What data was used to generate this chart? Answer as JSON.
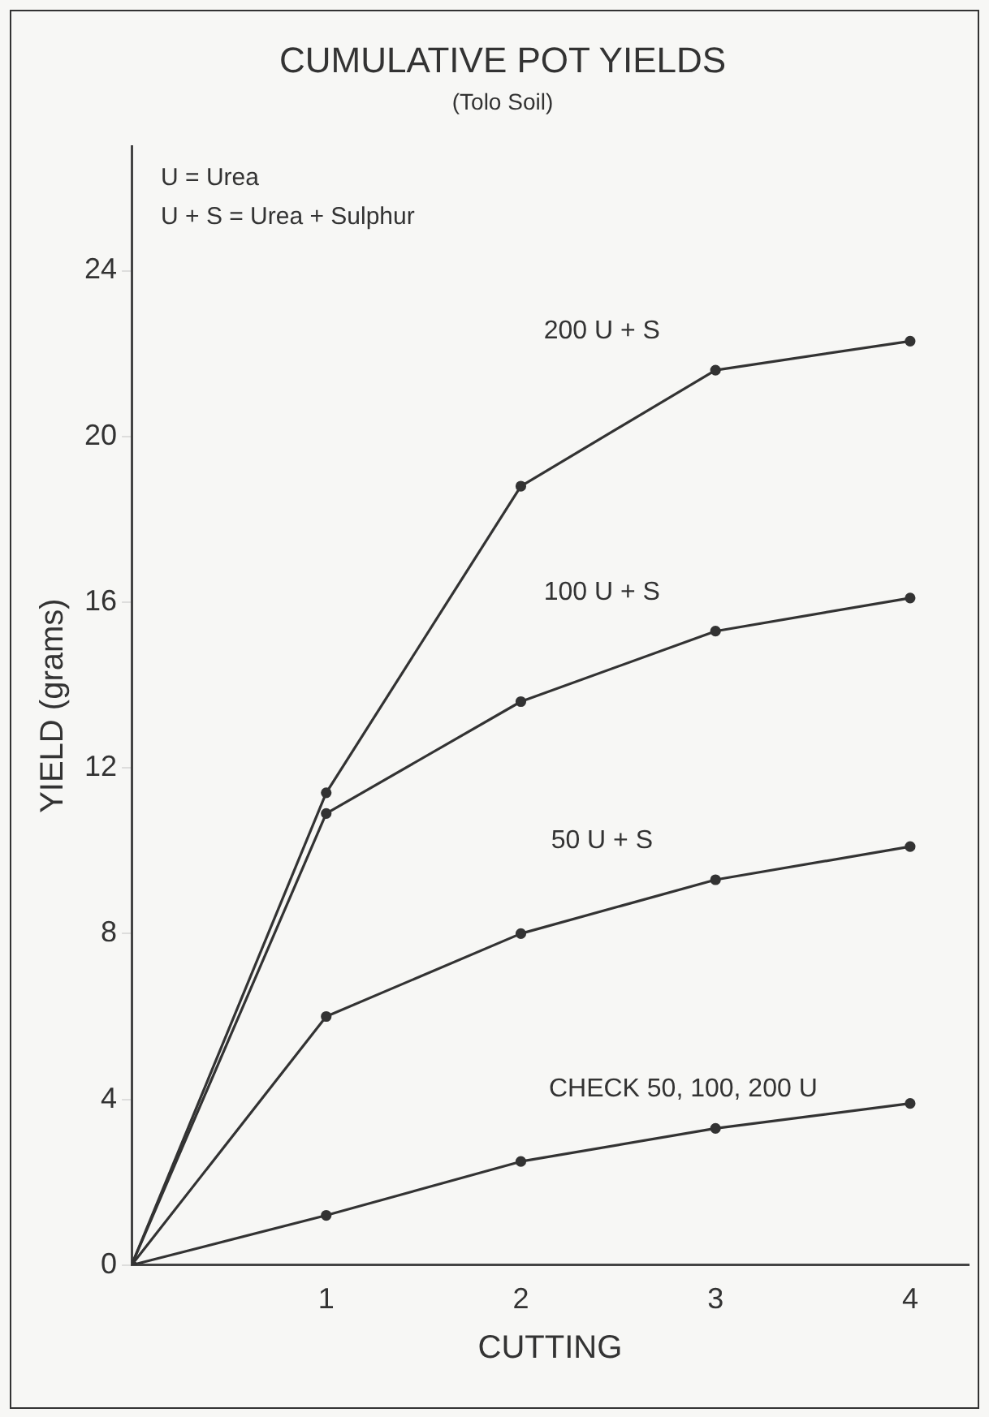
{
  "chart_data": {
    "type": "line",
    "title": "CUMULATIVE POT YIELDS",
    "subtitle": "(Tolo Soil)",
    "xlabel": "CUTTING",
    "ylabel": "YIELD (grams)",
    "annotations": [
      "U = Urea",
      "U + S = Urea + Sulphur"
    ],
    "x": [
      0,
      1,
      2,
      3,
      4
    ],
    "series": [
      {
        "name": "200 U + S",
        "color": "#333333",
        "values": [
          0,
          11.4,
          18.8,
          21.6,
          22.3
        ]
      },
      {
        "name": "100 U + S",
        "color": "#333333",
        "values": [
          0,
          10.9,
          13.6,
          15.3,
          16.1
        ]
      },
      {
        "name": "50 U + S",
        "color": "#333333",
        "values": [
          0,
          6.0,
          8.0,
          9.3,
          10.1
        ]
      },
      {
        "name": "CHECK 50, 100, 200 U",
        "color": "#333333",
        "values": [
          0,
          1.2,
          2.5,
          3.3,
          3.9
        ]
      }
    ],
    "xlim": [
      0,
      4.3
    ],
    "xticks": [
      1,
      2,
      3,
      4
    ],
    "ylim": [
      0,
      27
    ],
    "yticks": [
      0,
      4,
      8,
      12,
      16,
      20,
      24
    ],
    "grid": false,
    "legend": false,
    "marker": "circle",
    "line_style": "solid"
  }
}
